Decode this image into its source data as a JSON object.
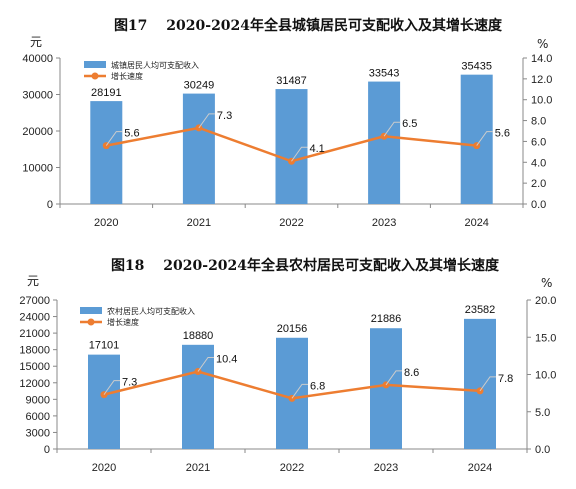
{
  "chart_data": [
    {
      "type": "bar",
      "title": "图17　 2020-2024年全县城镇居民可支配收入及其增长速度",
      "left_unit": "元",
      "right_unit": "%",
      "categories": [
        "2020",
        "2021",
        "2022",
        "2023",
        "2024"
      ],
      "series": [
        {
          "name": "城镇居民人均可支配收入",
          "kind": "bar",
          "axis": "left",
          "values": [
            28191,
            30249,
            31487,
            33543,
            35435
          ],
          "labels": [
            "28191",
            "30249",
            "31487",
            "33543",
            "35435"
          ]
        },
        {
          "name": "增长速度",
          "kind": "line",
          "axis": "right",
          "values": [
            5.6,
            7.3,
            4.1,
            6.5,
            5.6
          ],
          "labels": [
            "5.6",
            "7.3",
            "4.1",
            "6.5",
            "5.6"
          ]
        }
      ],
      "ylim": [
        0,
        40000
      ],
      "y2lim": [
        0,
        14
      ],
      "yticks": [
        "0",
        "10000",
        "20000",
        "30000",
        "40000"
      ],
      "y2ticks": [
        "0.0",
        "2.0",
        "4.0",
        "6.0",
        "8.0",
        "10.0",
        "12.0",
        "14.0"
      ],
      "legend_position": "top-left",
      "grid": false,
      "colors": {
        "bar": "#5b9bd5",
        "line": "#ed7d31"
      }
    },
    {
      "type": "bar",
      "title": "图18　 2020-2024年全县农村居民可支配收入及其增长速度",
      "left_unit": "元",
      "right_unit": "%",
      "categories": [
        "2020",
        "2021",
        "2022",
        "2023",
        "2024"
      ],
      "series": [
        {
          "name": "农村居民人均可支配收入",
          "kind": "bar",
          "axis": "left",
          "values": [
            17101,
            18880,
            20156,
            21886,
            23582
          ],
          "labels": [
            "17101",
            "18880",
            "20156",
            "21886",
            "23582"
          ]
        },
        {
          "name": "增长速度",
          "kind": "line",
          "axis": "right",
          "values": [
            7.3,
            10.4,
            6.8,
            8.6,
            7.8
          ],
          "labels": [
            "7.3",
            "10.4",
            "6.8",
            "8.6",
            "7.8"
          ]
        }
      ],
      "ylim": [
        0,
        27000
      ],
      "y2lim": [
        0,
        20
      ],
      "yticks": [
        "0",
        "3000",
        "6000",
        "9000",
        "12000",
        "15000",
        "18000",
        "21000",
        "24000",
        "27000"
      ],
      "y2ticks": [
        "0.0",
        "5.0",
        "10.0",
        "15.0",
        "20.0"
      ],
      "legend_position": "top-left",
      "grid": false,
      "colors": {
        "bar": "#5b9bd5",
        "line": "#ed7d31"
      }
    }
  ]
}
